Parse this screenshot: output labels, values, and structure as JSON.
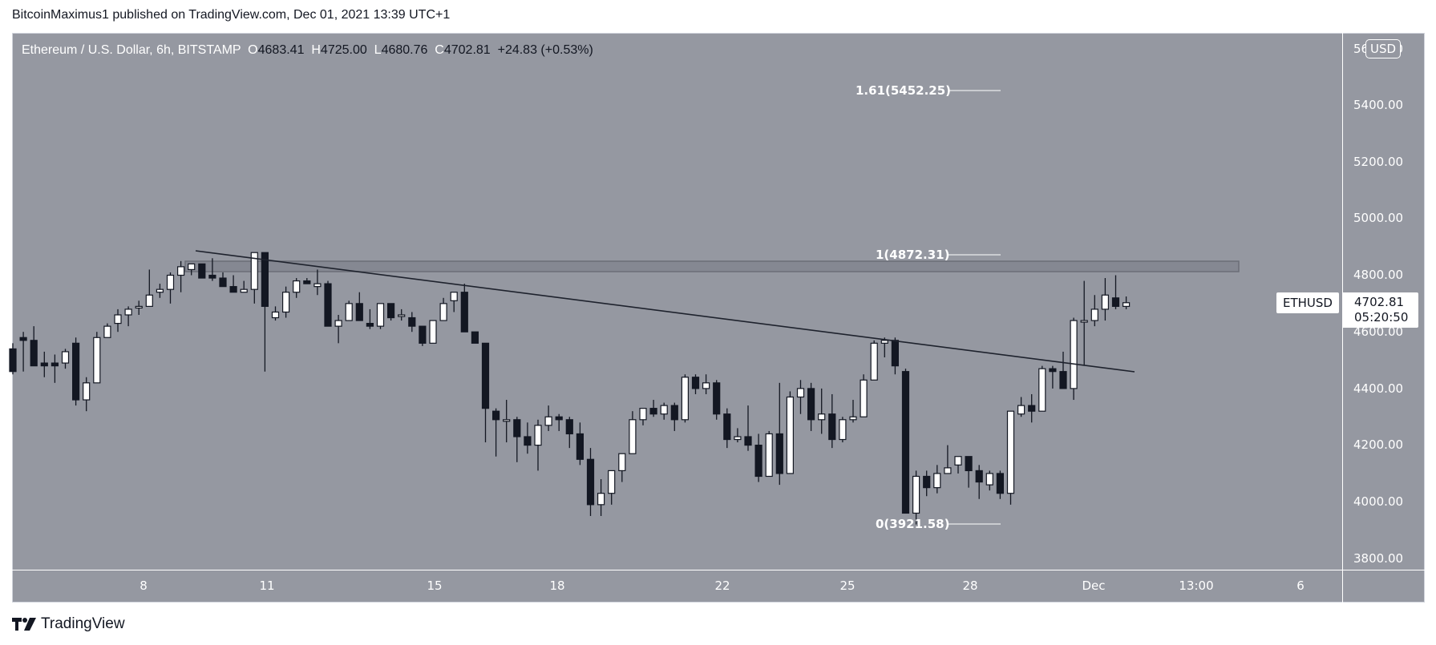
{
  "header": {
    "published_line": "BitcoinMaximus1 published on TradingView.com, Dec 01, 2021 13:39 UTC+1"
  },
  "legend": {
    "symbol_desc": "Ethereum / U.S. Dollar, 6h, BITSTAMP",
    "o_label": "O",
    "o_value": "4683.41",
    "h_label": "H",
    "h_value": "4725.00",
    "l_label": "L",
    "l_value": "4680.76",
    "c_label": "C",
    "c_value": "4702.81",
    "change": "+24.83 (+0.53%)"
  },
  "price_axis": {
    "currency": "USD",
    "labels": [
      "5600.00",
      "5400.00",
      "5200.00",
      "5000.00",
      "4800.00",
      "4600.00",
      "4400.00",
      "4200.00",
      "4000.00",
      "3800.00"
    ],
    "symbol_tag": "ETHUSD",
    "last_price": "4702.81",
    "countdown": "05:20:50"
  },
  "time_axis": {
    "labels": [
      "8",
      "11",
      "15",
      "18",
      "22",
      "25",
      "28",
      "Dec",
      "13:00",
      "6"
    ]
  },
  "footer": {
    "brand": "TradingView"
  },
  "colors": {
    "background": "#9598a1",
    "up_candle": "#ffffff",
    "down_candle": "#131722",
    "wick": "#131722",
    "axis_text": "#ffffff"
  },
  "chart_data": {
    "type": "candlestick",
    "title": "Ethereum / U.S. Dollar, 6h, BITSTAMP",
    "xlabel": "",
    "ylabel": "USD",
    "ylim": [
      3750,
      5650
    ],
    "x_ticks": [
      "8",
      "11",
      "15",
      "18",
      "22",
      "25",
      "28",
      "Dec",
      "13:00",
      "6"
    ],
    "y_ticks": [
      3800,
      4000,
      4200,
      4400,
      4600,
      4800,
      5000,
      5200,
      5400,
      5600
    ],
    "grid": false,
    "last": {
      "open": 4683.41,
      "high": 4725.0,
      "low": 4680.76,
      "close": 4702.81,
      "change": 24.83,
      "change_pct": 0.53
    },
    "fibonacci": [
      {
        "level": "1.61",
        "price": 5452.25,
        "label": "1.61(5452.25)"
      },
      {
        "level": "1",
        "price": 4872.31,
        "label": "1(4872.31)"
      },
      {
        "level": "0",
        "price": 3921.58,
        "label": "0(3921.58)"
      }
    ],
    "resistance_zone": {
      "top": 4835,
      "bottom": 4800
    },
    "trendline": {
      "start": {
        "x_date": "Nov 9",
        "price": 4890
      },
      "end": {
        "x_date": "Dec 2",
        "price": 4460
      }
    },
    "candles": [
      [
        4540,
        4560,
        4450,
        4460
      ],
      [
        4580,
        4600,
        4460,
        4570
      ],
      [
        4570,
        4620,
        4480,
        4480
      ],
      [
        4490,
        4530,
        4440,
        4480
      ],
      [
        4490,
        4520,
        4420,
        4480
      ],
      [
        4490,
        4540,
        4470,
        4530
      ],
      [
        4560,
        4580,
        4340,
        4360
      ],
      [
        4360,
        4440,
        4320,
        4420
      ],
      [
        4420,
        4600,
        4420,
        4580
      ],
      [
        4580,
        4630,
        4580,
        4620
      ],
      [
        4630,
        4680,
        4600,
        4660
      ],
      [
        4660,
        4690,
        4620,
        4680
      ],
      [
        4690,
        4710,
        4660,
        4690
      ],
      [
        4690,
        4820,
        4690,
        4730
      ],
      [
        4740,
        4770,
        4720,
        4750
      ],
      [
        4750,
        4810,
        4700,
        4800
      ],
      [
        4800,
        4850,
        4740,
        4830
      ],
      [
        4820,
        4840,
        4800,
        4840
      ],
      [
        4840,
        4840,
        4800,
        4790
      ],
      [
        4800,
        4860,
        4780,
        4790
      ],
      [
        4790,
        4810,
        4760,
        4760
      ],
      [
        4760,
        4800,
        4740,
        4740
      ],
      [
        4740,
        4780,
        4740,
        4750
      ],
      [
        4750,
        4880,
        4700,
        4880
      ],
      [
        4880,
        4880,
        4460,
        4690
      ],
      [
        4650,
        4690,
        4640,
        4670
      ],
      [
        4670,
        4760,
        4650,
        4740
      ],
      [
        4740,
        4790,
        4720,
        4780
      ],
      [
        4780,
        4790,
        4770,
        4770
      ],
      [
        4760,
        4820,
        4730,
        4770
      ],
      [
        4770,
        4780,
        4640,
        4620
      ],
      [
        4620,
        4660,
        4560,
        4640
      ],
      [
        4640,
        4710,
        4640,
        4700
      ],
      [
        4700,
        4740,
        4640,
        4640
      ],
      [
        4630,
        4680,
        4610,
        4620
      ],
      [
        4620,
        4700,
        4610,
        4700
      ],
      [
        4700,
        4700,
        4640,
        4650
      ],
      [
        4660,
        4680,
        4640,
        4660
      ],
      [
        4650,
        4670,
        4600,
        4620
      ],
      [
        4620,
        4620,
        4550,
        4560
      ],
      [
        4560,
        4640,
        4570,
        4640
      ],
      [
        4640,
        4720,
        4640,
        4700
      ],
      [
        4710,
        4740,
        4670,
        4740
      ],
      [
        4740,
        4770,
        4600,
        4600
      ],
      [
        4600,
        4600,
        4560,
        4560
      ],
      [
        4560,
        4560,
        4210,
        4330
      ],
      [
        4320,
        4330,
        4160,
        4290
      ],
      [
        4290,
        4360,
        4210,
        4290
      ],
      [
        4290,
        4300,
        4140,
        4230
      ],
      [
        4230,
        4280,
        4170,
        4200
      ],
      [
        4200,
        4290,
        4110,
        4270
      ],
      [
        4270,
        4340,
        4250,
        4300
      ],
      [
        4300,
        4310,
        4250,
        4290
      ],
      [
        4290,
        4300,
        4190,
        4240
      ],
      [
        4240,
        4280,
        4130,
        4150
      ],
      [
        4150,
        4190,
        3950,
        3990
      ],
      [
        3990,
        4080,
        3950,
        4030
      ],
      [
        4030,
        4100,
        3990,
        4110
      ],
      [
        4110,
        4170,
        4070,
        4170
      ],
      [
        4170,
        4320,
        4170,
        4290
      ],
      [
        4290,
        4330,
        4270,
        4330
      ],
      [
        4330,
        4360,
        4300,
        4310
      ],
      [
        4310,
        4350,
        4290,
        4340
      ],
      [
        4340,
        4350,
        4250,
        4290
      ],
      [
        4290,
        4450,
        4280,
        4440
      ],
      [
        4440,
        4450,
        4380,
        4400
      ],
      [
        4400,
        4450,
        4380,
        4420
      ],
      [
        4420,
        4430,
        4290,
        4310
      ],
      [
        4310,
        4330,
        4190,
        4220
      ],
      [
        4220,
        4260,
        4210,
        4230
      ],
      [
        4230,
        4340,
        4180,
        4200
      ],
      [
        4200,
        4240,
        4070,
        4090
      ],
      [
        4090,
        4250,
        4110,
        4240
      ],
      [
        4240,
        4420,
        4060,
        4100
      ],
      [
        4100,
        4390,
        4110,
        4370
      ],
      [
        4370,
        4430,
        4310,
        4400
      ],
      [
        4400,
        4420,
        4250,
        4290
      ],
      [
        4290,
        4400,
        4240,
        4310
      ],
      [
        4310,
        4380,
        4190,
        4220
      ],
      [
        4220,
        4300,
        4210,
        4290
      ],
      [
        4290,
        4360,
        4280,
        4300
      ],
      [
        4300,
        4450,
        4300,
        4430
      ],
      [
        4430,
        4570,
        4430,
        4560
      ],
      [
        4560,
        4580,
        4510,
        4570
      ],
      [
        4570,
        4580,
        4450,
        4480
      ],
      [
        4460,
        4470,
        3960,
        3960
      ],
      [
        3960,
        4110,
        3920,
        4090
      ],
      [
        4090,
        4110,
        4020,
        4050
      ],
      [
        4050,
        4130,
        4030,
        4100
      ],
      [
        4100,
        4200,
        4100,
        4120
      ],
      [
        4130,
        4150,
        4100,
        4160
      ],
      [
        4160,
        4160,
        4050,
        4110
      ],
      [
        4110,
        4130,
        4010,
        4070
      ],
      [
        4060,
        4110,
        4040,
        4100
      ],
      [
        4100,
        4110,
        4010,
        4030
      ],
      [
        4030,
        4290,
        3990,
        4320
      ],
      [
        4310,
        4370,
        4300,
        4340
      ],
      [
        4340,
        4380,
        4280,
        4320
      ],
      [
        4320,
        4480,
        4320,
        4470
      ],
      [
        4470,
        4480,
        4400,
        4460
      ],
      [
        4460,
        4530,
        4460,
        4400
      ],
      [
        4400,
        4650,
        4360,
        4640
      ],
      [
        4640,
        4780,
        4480,
        4640
      ],
      [
        4640,
        4730,
        4620,
        4680
      ],
      [
        4680,
        4790,
        4640,
        4730
      ],
      [
        4720,
        4800,
        4680,
        4690
      ],
      [
        4690,
        4725,
        4680,
        4703
      ]
    ]
  }
}
